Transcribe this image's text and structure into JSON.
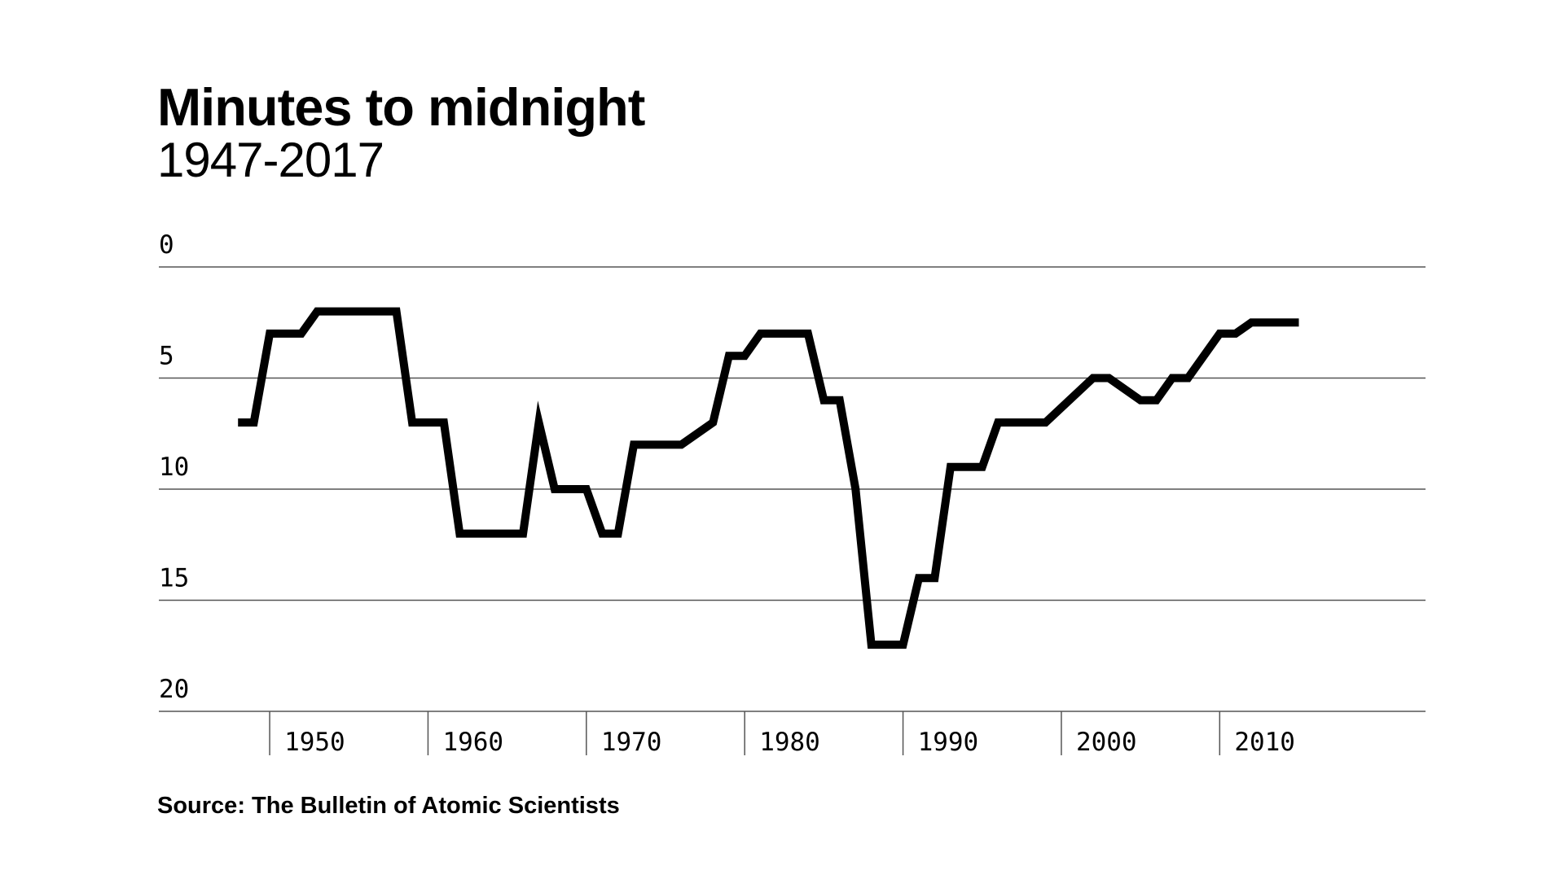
{
  "title": "Minutes to midnight",
  "subtitle": "1947-2017",
  "source": "Source: The Bulletin of Atomic Scientists",
  "chart_data": {
    "type": "line",
    "title": "Minutes to midnight",
    "subtitle": "1947-2017",
    "xlabel": "",
    "ylabel": "",
    "xlim": [
      1943,
      2023
    ],
    "ylim": [
      0,
      20
    ],
    "y_inverted": true,
    "x_ticks": [
      1950,
      1960,
      1970,
      1980,
      1990,
      2000,
      2010
    ],
    "y_ticks": [
      0,
      5,
      10,
      15,
      20
    ],
    "grid": "horizontal",
    "legend": "none",
    "line_color": "#000000",
    "grid_color": "#555555",
    "series": [
      {
        "x": [
          1948,
          1949,
          1950,
          1952,
          1953,
          1955,
          1956,
          1958,
          1959,
          1961,
          1962,
          1964,
          1966,
          1967,
          1968,
          1970,
          1971,
          1972,
          1973,
          1975,
          1976,
          1978,
          1979,
          1980,
          1981,
          1982,
          1983,
          1984,
          1985,
          1986,
          1987,
          1988,
          1989,
          1990,
          1991,
          1992,
          1993,
          1995,
          1996,
          1998,
          1999,
          2002,
          2003,
          2005,
          2006,
          2007,
          2008,
          2010,
          2011,
          2012,
          2013,
          2015
        ],
        "values": [
          7,
          7,
          3,
          3,
          2,
          2,
          2,
          2,
          7,
          7,
          12,
          12,
          12,
          7,
          10,
          10,
          12,
          12,
          8,
          8,
          8,
          7,
          4,
          4,
          3,
          3,
          3,
          3,
          6,
          6,
          10,
          17,
          17,
          17,
          14,
          14,
          9,
          9,
          7,
          7,
          7,
          5,
          5,
          6,
          6,
          5,
          5,
          3,
          3,
          2.5,
          2.5,
          2.5
        ]
      }
    ]
  }
}
